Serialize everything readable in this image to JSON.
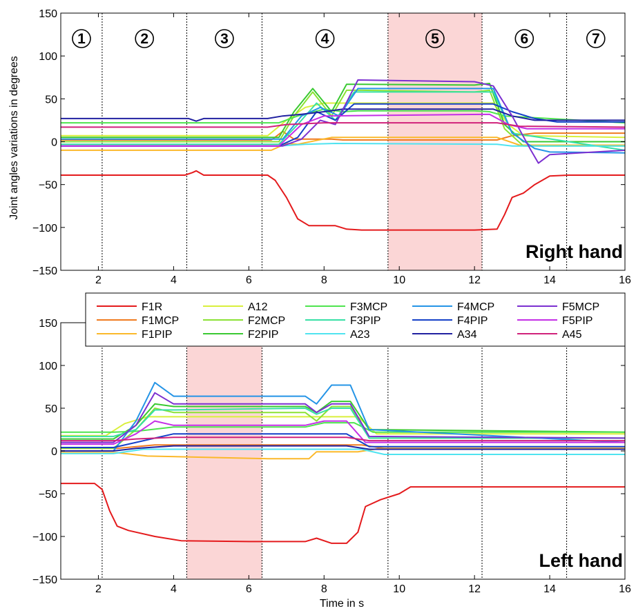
{
  "ylabel": "Joint angles variations in degrees",
  "xlabel": "Time in s",
  "phase_boundaries": [
    2.1,
    4.35,
    6.35,
    9.7,
    12.2,
    14.45
  ],
  "phase_labels": [
    "1",
    "2",
    "3",
    "4",
    "5",
    "6",
    "7"
  ],
  "chart_data": [
    {
      "type": "line",
      "hand_label": "Right hand",
      "xlim": [
        1,
        16
      ],
      "ylim": [
        -150,
        150
      ],
      "xticks": [
        2,
        4,
        6,
        8,
        10,
        12,
        14,
        16
      ],
      "yticks": [
        150,
        100,
        50,
        0,
        -50,
        -100,
        -150
      ],
      "ytick_labels": [
        "150",
        "100",
        "50",
        "0",
        "−50",
        "−100",
        "−150"
      ],
      "highlight_range": [
        9.7,
        12.2
      ],
      "series": [
        {
          "name": "F1R",
          "color": "#e41a1c",
          "x": [
            1,
            4.3,
            4.5,
            4.6,
            4.8,
            6.5,
            6.7,
            7.0,
            7.3,
            7.6,
            8.0,
            8.3,
            8.6,
            9.0,
            12.0,
            12.6,
            12.8,
            13.0,
            13.3,
            13.6,
            14.0,
            14.5,
            16
          ],
          "y": [
            -39,
            -39,
            -36,
            -34,
            -39,
            -39,
            -45,
            -65,
            -90,
            -98,
            -98,
            -98,
            -102,
            -103,
            -103,
            -102,
            -85,
            -65,
            -60,
            -50,
            -40,
            -39,
            -39
          ]
        },
        {
          "name": "F1MCP",
          "color": "#f07b1f",
          "x": [
            1,
            6.6,
            6.9,
            7.2,
            8.2,
            8.5,
            12.6,
            13.0,
            13.6,
            16
          ],
          "y": [
            2,
            2,
            12,
            3,
            3,
            2,
            2,
            7,
            10,
            10
          ]
        },
        {
          "name": "F1PIP",
          "color": "#fbb829",
          "x": [
            1,
            6.6,
            7.0,
            7.3,
            8.2,
            12.6,
            13.2,
            16
          ],
          "y": [
            -10,
            -10,
            -2,
            -3,
            5,
            5,
            -4,
            -4
          ]
        },
        {
          "name": "A12",
          "color": "#d9ef3b",
          "x": [
            1,
            6.5,
            7.0,
            7.5,
            8.0,
            8.5,
            12.5,
            12.9,
            13.3,
            16
          ],
          "y": [
            7,
            7,
            25,
            40,
            45,
            45,
            45,
            20,
            7,
            5
          ]
        },
        {
          "name": "F2MCP",
          "color": "#8ae234",
          "x": [
            1,
            6.8,
            7.2,
            7.7,
            8.2,
            8.6,
            9.0,
            12.0,
            12.4,
            12.8,
            13.3,
            16
          ],
          "y": [
            0,
            0,
            30,
            58,
            30,
            60,
            60,
            58,
            60,
            15,
            -5,
            -5
          ]
        },
        {
          "name": "F2PIP",
          "color": "#39c931",
          "x": [
            1,
            6.8,
            7.2,
            7.7,
            8.2,
            8.6,
            9.0,
            12.0,
            12.4,
            12.8,
            13.3,
            16
          ],
          "y": [
            5,
            5,
            35,
            62,
            35,
            67,
            67,
            66,
            68,
            20,
            0,
            0
          ]
        },
        {
          "name": "F3MCP",
          "color": "#4ee44e",
          "x": [
            1,
            6.8,
            7.3,
            8.0,
            8.5,
            8.9,
            12.0,
            12.4,
            12.8,
            16
          ],
          "y": [
            22,
            22,
            30,
            38,
            35,
            36,
            36,
            35,
            30,
            22
          ]
        },
        {
          "name": "F3PIP",
          "color": "#36e0a5",
          "x": [
            1,
            6.8,
            7.3,
            7.8,
            8.3,
            8.8,
            12.0,
            12.5,
            13.0,
            16
          ],
          "y": [
            -3,
            -3,
            20,
            45,
            25,
            58,
            58,
            58,
            10,
            -10
          ]
        },
        {
          "name": "A23",
          "color": "#4fe3f0",
          "x": [
            1,
            6.8,
            7.5,
            8.3,
            12.6,
            13.0,
            16
          ],
          "y": [
            -5,
            -5,
            -3,
            -2,
            -3,
            -5,
            -5
          ]
        },
        {
          "name": "F4MCP",
          "color": "#2494e6",
          "x": [
            1,
            6.9,
            7.4,
            7.9,
            8.4,
            8.9,
            12.0,
            12.5,
            13.0,
            13.6,
            14.0,
            16
          ],
          "y": [
            3,
            3,
            30,
            40,
            30,
            62,
            62,
            62,
            10,
            -8,
            -12,
            -13
          ]
        },
        {
          "name": "F4PIP",
          "color": "#1440c8",
          "x": [
            1,
            6.8,
            7.3,
            7.8,
            8.3,
            8.8,
            12.0,
            12.5,
            13.0,
            13.6,
            14.2,
            16
          ],
          "y": [
            -5,
            -5,
            5,
            35,
            25,
            44,
            44,
            44,
            35,
            27,
            23,
            23
          ]
        },
        {
          "name": "A34",
          "color": "#2020a0",
          "x": [
            1,
            4.4,
            4.6,
            4.8,
            6.5,
            6.9,
            7.4,
            8.0,
            8.5,
            12.5,
            13.0,
            13.6,
            16
          ],
          "y": [
            27,
            27,
            24,
            27,
            27,
            30,
            32,
            35,
            38,
            38,
            30,
            25,
            25
          ]
        },
        {
          "name": "F5MCP",
          "color": "#7b2fd0",
          "x": [
            1,
            6.9,
            7.4,
            7.9,
            8.3,
            8.9,
            12.0,
            12.5,
            13.0,
            13.5,
            13.7,
            14.0,
            16
          ],
          "y": [
            -5,
            -5,
            3,
            25,
            20,
            72,
            70,
            65,
            30,
            -10,
            -25,
            -15,
            -10
          ]
        },
        {
          "name": "F5PIP",
          "color": "#c42ee6",
          "x": [
            1,
            6.8,
            7.4,
            8.0,
            12.4,
            12.9,
            13.4,
            16
          ],
          "y": [
            -5,
            -5,
            20,
            30,
            32,
            20,
            15,
            15
          ]
        },
        {
          "name": "A45",
          "color": "#d0217a",
          "x": [
            1,
            6.5,
            7.0,
            8.0,
            12.6,
            13.2,
            16
          ],
          "y": [
            17,
            17,
            20,
            22,
            22,
            18,
            17
          ]
        }
      ]
    },
    {
      "type": "line",
      "hand_label": "Left hand",
      "xlim": [
        1,
        16
      ],
      "ylim": [
        -150,
        150
      ],
      "xticks": [
        2,
        4,
        6,
        8,
        10,
        12,
        14,
        16
      ],
      "yticks": [
        150,
        100,
        50,
        0,
        -50,
        -100,
        -150
      ],
      "ytick_labels": [
        "150",
        "100",
        "50",
        "0",
        "−50",
        "−100",
        "−150"
      ],
      "highlight_range": [
        4.35,
        6.35
      ],
      "series": [
        {
          "name": "F1R",
          "color": "#e41a1c",
          "x": [
            1,
            1.9,
            2.1,
            2.3,
            2.5,
            2.8,
            3.5,
            4.2,
            6.0,
            7.5,
            7.8,
            8.2,
            8.6,
            8.9,
            9.1,
            9.5,
            10.0,
            10.3,
            16
          ],
          "y": [
            -38,
            -38,
            -45,
            -70,
            -88,
            -93,
            -100,
            -105,
            -106,
            -106,
            -102,
            -108,
            -108,
            -95,
            -65,
            -57,
            -50,
            -42,
            -42
          ]
        },
        {
          "name": "F1MCP",
          "color": "#f07b1f",
          "x": [
            1,
            2.5,
            3.5,
            9.0,
            9.6,
            16
          ],
          "y": [
            3,
            3,
            7,
            7,
            3,
            3
          ]
        },
        {
          "name": "F1PIP",
          "color": "#fbb829",
          "x": [
            1,
            2.5,
            3.3,
            6.5,
            7.6,
            7.8,
            8.9,
            9.5,
            16
          ],
          "y": [
            -2,
            -2,
            -6,
            -9,
            -9,
            -1,
            -1,
            3,
            3
          ]
        },
        {
          "name": "A12",
          "color": "#d9ef3b",
          "x": [
            1,
            2.2,
            2.7,
            3.3,
            8.9,
            9.4,
            16
          ],
          "y": [
            18,
            18,
            32,
            40,
            40,
            20,
            20
          ]
        },
        {
          "name": "F2MCP",
          "color": "#8ae234",
          "x": [
            1,
            2.4,
            3.0,
            3.5,
            4.0,
            7.5,
            7.8,
            8.2,
            8.7,
            9.2,
            16
          ],
          "y": [
            3,
            3,
            25,
            50,
            45,
            45,
            35,
            52,
            52,
            15,
            15
          ]
        },
        {
          "name": "F2PIP",
          "color": "#39c931",
          "x": [
            1,
            2.4,
            3.0,
            3.5,
            4.0,
            7.5,
            7.8,
            8.2,
            8.7,
            9.2,
            16
          ],
          "y": [
            14,
            14,
            30,
            55,
            52,
            52,
            45,
            58,
            58,
            25,
            22
          ]
        },
        {
          "name": "F3MCP",
          "color": "#4ee44e",
          "x": [
            1,
            2.4,
            3.0,
            4.0,
            7.5,
            8.0,
            8.8,
            9.3,
            16
          ],
          "y": [
            22,
            22,
            23,
            28,
            28,
            33,
            33,
            22,
            22
          ]
        },
        {
          "name": "F3PIP",
          "color": "#36e0a5",
          "x": [
            1,
            2.4,
            3.0,
            3.5,
            4.0,
            7.5,
            7.8,
            8.2,
            8.7,
            9.2,
            16
          ],
          "y": [
            17,
            17,
            25,
            48,
            48,
            50,
            43,
            50,
            50,
            15,
            15
          ]
        },
        {
          "name": "A23",
          "color": "#4fe3f0",
          "x": [
            1,
            2.4,
            3.2,
            9.0,
            9.6,
            16
          ],
          "y": [
            -3,
            -3,
            2,
            2,
            -4,
            -4
          ]
        },
        {
          "name": "F4MCP",
          "color": "#2494e6",
          "x": [
            1,
            2.4,
            3.0,
            3.5,
            4.0,
            7.5,
            7.8,
            8.2,
            8.7,
            9.2,
            16
          ],
          "y": [
            0,
            0,
            35,
            80,
            64,
            64,
            55,
            77,
            77,
            25,
            10
          ]
        },
        {
          "name": "F4PIP",
          "color": "#1440c8",
          "x": [
            1,
            2.4,
            3.0,
            3.5,
            4.0,
            8.6,
            9.2,
            16
          ],
          "y": [
            4,
            4,
            10,
            15,
            20,
            20,
            5,
            5
          ]
        },
        {
          "name": "A34",
          "color": "#2020a0",
          "x": [
            1,
            2.4,
            3.0,
            4.0,
            8.6,
            9.2,
            16
          ],
          "y": [
            0,
            0,
            3,
            6,
            6,
            2,
            2
          ]
        },
        {
          "name": "F5MCP",
          "color": "#7b2fd0",
          "x": [
            1,
            2.4,
            3.0,
            3.5,
            4.0,
            7.5,
            7.8,
            8.2,
            8.7,
            9.2,
            16
          ],
          "y": [
            10,
            10,
            30,
            68,
            55,
            55,
            45,
            55,
            55,
            17,
            15
          ]
        },
        {
          "name": "F5PIP",
          "color": "#c42ee6",
          "x": [
            1,
            2.4,
            3.0,
            3.5,
            4.0,
            7.5,
            8.0,
            8.6,
            9.1,
            16
          ],
          "y": [
            8,
            8,
            20,
            35,
            30,
            30,
            35,
            35,
            10,
            10
          ]
        },
        {
          "name": "A45",
          "color": "#d0217a",
          "x": [
            1,
            2.4,
            3.0,
            4.0,
            8.6,
            9.2,
            16
          ],
          "y": [
            12,
            12,
            14,
            16,
            16,
            12,
            12
          ]
        }
      ]
    }
  ]
}
